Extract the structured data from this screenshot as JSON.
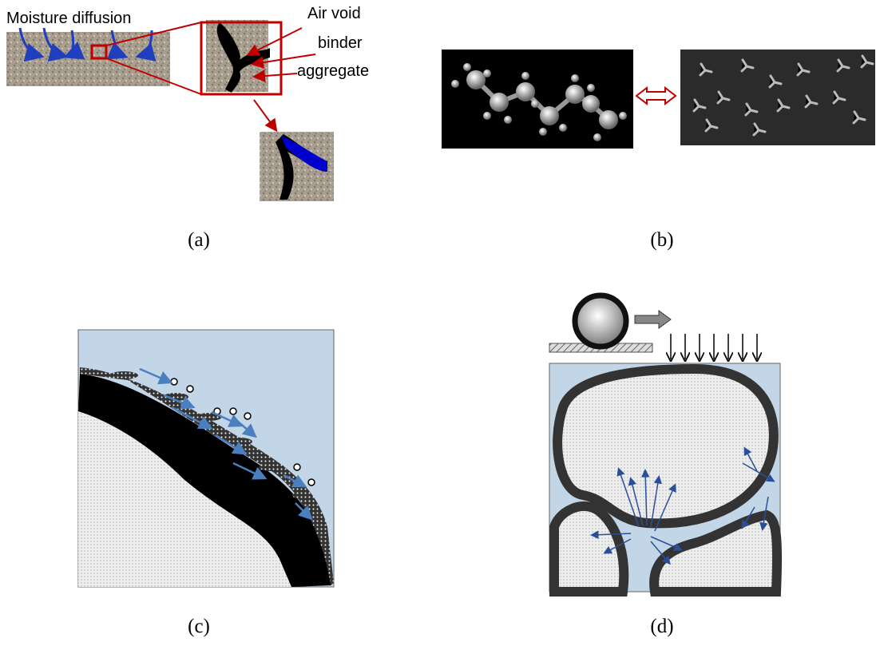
{
  "panel_a": {
    "label": "(a)",
    "moisture_text": "Moisture diffusion",
    "air_void_text": "Air void",
    "binder_text": "binder",
    "aggregate_text": "aggregate"
  },
  "panel_b": {
    "label": "(b)"
  },
  "panel_c": {
    "label": "(c)"
  },
  "panel_d": {
    "label": "(d)"
  }
}
